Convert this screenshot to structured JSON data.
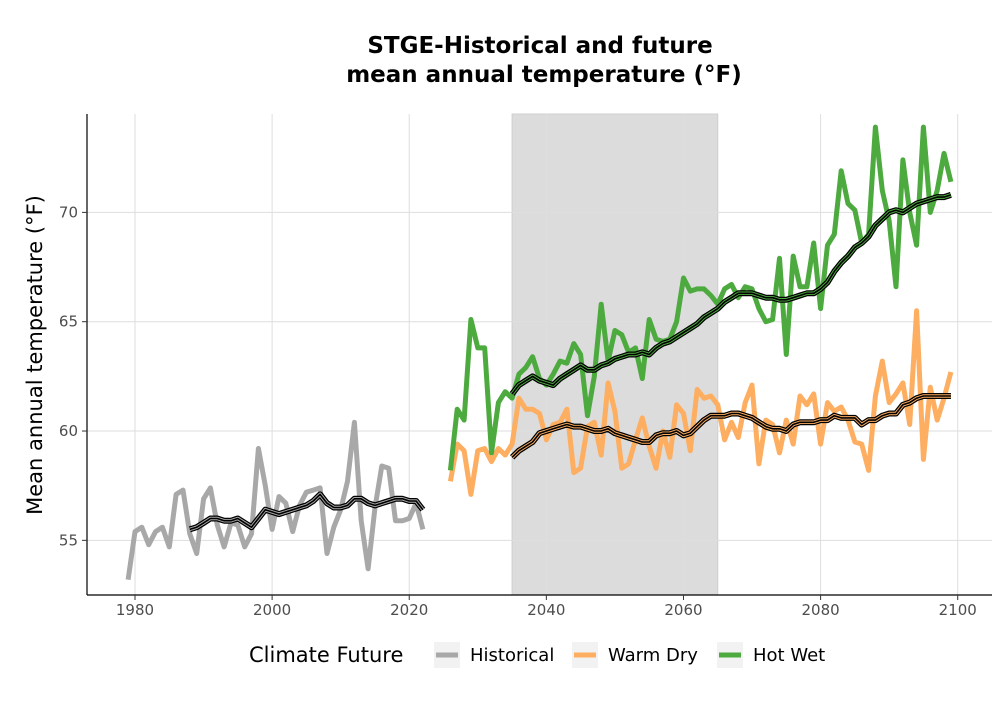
{
  "chart_data": {
    "type": "line",
    "title_lines": [
      "STGE-Historical and future",
      "mean annual temperature (°F)"
    ],
    "xlabel": "",
    "ylabel": "Mean annual temperature (°F)",
    "xlim": [
      1973,
      2105
    ],
    "ylim": [
      52.5,
      74.5
    ],
    "x_ticks": [
      1980,
      2000,
      2020,
      2040,
      2060,
      2080,
      2100
    ],
    "y_ticks": [
      55,
      60,
      65,
      70
    ],
    "grid": true,
    "legend": {
      "title": "Climate Future",
      "position": "bottom"
    },
    "shaded_period": [
      2035,
      2065
    ],
    "shade_color": "#dcdcdc",
    "series": [
      {
        "name": "Historical",
        "color": "#a8a8a8",
        "x": [
          1979,
          1980,
          1981,
          1982,
          1983,
          1984,
          1985,
          1986,
          1987,
          1988,
          1989,
          1990,
          1991,
          1992,
          1993,
          1994,
          1995,
          1996,
          1997,
          1998,
          1999,
          2000,
          2001,
          2002,
          2003,
          2004,
          2005,
          2006,
          2007,
          2008,
          2009,
          2010,
          2011,
          2012,
          2013,
          2014,
          2015,
          2016,
          2017,
          2018,
          2019,
          2020,
          2021,
          2022
        ],
        "y": [
          53.2,
          55.4,
          55.6,
          54.8,
          55.4,
          55.6,
          54.7,
          57.1,
          57.3,
          55.3,
          54.4,
          56.9,
          57.4,
          55.7,
          54.7,
          55.8,
          55.7,
          54.7,
          55.3,
          59.2,
          57.5,
          55.5,
          57.0,
          56.7,
          55.4,
          56.6,
          57.2,
          57.3,
          57.4,
          54.4,
          55.6,
          56.4,
          57.7,
          60.4,
          55.9,
          53.7,
          56.5,
          58.4,
          58.3,
          55.9,
          55.9,
          56.0,
          56.7,
          55.5
        ],
        "smooth_x": [
          1988,
          1989,
          1990,
          1991,
          1992,
          1993,
          1994,
          1995,
          1996,
          1997,
          1998,
          1999,
          2000,
          2001,
          2002,
          2003,
          2004,
          2005,
          2006,
          2007,
          2008,
          2009,
          2010,
          2011,
          2012,
          2013,
          2014,
          2015,
          2016,
          2017,
          2018,
          2019,
          2020,
          2021,
          2022
        ],
        "smooth_y": [
          55.5,
          55.6,
          55.8,
          56.0,
          56.0,
          55.9,
          55.9,
          56.0,
          55.8,
          55.6,
          56.0,
          56.4,
          56.3,
          56.2,
          56.3,
          56.4,
          56.5,
          56.6,
          56.8,
          57.1,
          56.7,
          56.5,
          56.5,
          56.6,
          56.9,
          56.9,
          56.7,
          56.6,
          56.7,
          56.8,
          56.9,
          56.9,
          56.8,
          56.8,
          56.4
        ]
      },
      {
        "name": "Warm Dry",
        "color": "#fdae61",
        "x": [
          2026,
          2027,
          2028,
          2029,
          2030,
          2031,
          2032,
          2033,
          2034,
          2035,
          2036,
          2037,
          2038,
          2039,
          2040,
          2041,
          2042,
          2043,
          2044,
          2045,
          2046,
          2047,
          2048,
          2049,
          2050,
          2051,
          2052,
          2053,
          2054,
          2055,
          2056,
          2057,
          2058,
          2059,
          2060,
          2061,
          2062,
          2063,
          2064,
          2065,
          2066,
          2067,
          2068,
          2069,
          2070,
          2071,
          2072,
          2073,
          2074,
          2075,
          2076,
          2077,
          2078,
          2079,
          2080,
          2081,
          2082,
          2083,
          2084,
          2085,
          2086,
          2087,
          2088,
          2089,
          2090,
          2091,
          2092,
          2093,
          2094,
          2095,
          2096,
          2097,
          2098,
          2099
        ],
        "y": [
          57.7,
          59.4,
          59.1,
          57.1,
          59.1,
          59.2,
          58.6,
          59.2,
          58.9,
          59.4,
          61.5,
          61.0,
          61.0,
          60.8,
          59.6,
          60.3,
          60.4,
          61.0,
          58.1,
          58.3,
          60.2,
          60.4,
          58.9,
          62.2,
          60.9,
          58.3,
          58.5,
          59.6,
          60.6,
          59.3,
          58.3,
          60.0,
          58.8,
          61.2,
          60.8,
          59.1,
          61.9,
          61.5,
          61.6,
          61.2,
          59.6,
          60.4,
          59.7,
          61.3,
          62.1,
          58.5,
          60.5,
          60.3,
          59.0,
          60.5,
          59.4,
          61.6,
          61.2,
          61.7,
          59.4,
          61.3,
          60.9,
          61.1,
          60.5,
          59.5,
          59.4,
          58.2,
          61.6,
          63.2,
          61.3,
          61.7,
          62.2,
          60.3,
          65.5,
          58.7,
          62.0,
          60.5,
          61.5,
          62.7
        ],
        "smooth_x": [
          2035,
          2036,
          2037,
          2038,
          2039,
          2040,
          2041,
          2042,
          2043,
          2044,
          2045,
          2046,
          2047,
          2048,
          2049,
          2050,
          2051,
          2052,
          2053,
          2054,
          2055,
          2056,
          2057,
          2058,
          2059,
          2060,
          2061,
          2062,
          2063,
          2064,
          2065,
          2066,
          2067,
          2068,
          2069,
          2070,
          2071,
          2072,
          2073,
          2074,
          2075,
          2076,
          2077,
          2078,
          2079,
          2080,
          2081,
          2082,
          2083,
          2084,
          2085,
          2086,
          2087,
          2088,
          2089,
          2090,
          2091,
          2092,
          2093,
          2094,
          2095,
          2096,
          2097,
          2098,
          2099
        ],
        "smooth_y": [
          58.8,
          59.1,
          59.3,
          59.5,
          59.9,
          60.0,
          60.1,
          60.2,
          60.3,
          60.2,
          60.2,
          60.1,
          60.0,
          60.0,
          60.1,
          59.9,
          59.8,
          59.7,
          59.6,
          59.5,
          59.5,
          59.8,
          59.9,
          59.9,
          60.0,
          59.8,
          59.9,
          60.2,
          60.5,
          60.7,
          60.7,
          60.7,
          60.8,
          60.8,
          60.7,
          60.6,
          60.4,
          60.2,
          60.1,
          60.1,
          60.0,
          60.3,
          60.4,
          60.4,
          60.4,
          60.5,
          60.5,
          60.7,
          60.6,
          60.6,
          60.6,
          60.3,
          60.5,
          60.5,
          60.7,
          60.8,
          60.8,
          61.2,
          61.3,
          61.5,
          61.6,
          61.6,
          61.6,
          61.6,
          61.6
        ]
      },
      {
        "name": "Hot Wet",
        "color": "#4daa3f",
        "x": [
          2026,
          2027,
          2028,
          2029,
          2030,
          2031,
          2032,
          2033,
          2034,
          2035,
          2036,
          2037,
          2038,
          2039,
          2040,
          2041,
          2042,
          2043,
          2044,
          2045,
          2046,
          2047,
          2048,
          2049,
          2050,
          2051,
          2052,
          2053,
          2054,
          2055,
          2056,
          2057,
          2058,
          2059,
          2060,
          2061,
          2062,
          2063,
          2064,
          2065,
          2066,
          2067,
          2068,
          2069,
          2070,
          2071,
          2072,
          2073,
          2074,
          2075,
          2076,
          2077,
          2078,
          2079,
          2080,
          2081,
          2082,
          2083,
          2084,
          2085,
          2086,
          2087,
          2088,
          2089,
          2090,
          2091,
          2092,
          2093,
          2094,
          2095,
          2096,
          2097,
          2098,
          2099
        ],
        "y": [
          58.2,
          61.0,
          60.5,
          65.1,
          63.8,
          63.8,
          59.0,
          61.3,
          61.8,
          61.5,
          62.6,
          62.9,
          63.4,
          62.4,
          62.1,
          62.6,
          63.2,
          63.1,
          64.0,
          63.5,
          60.7,
          62.5,
          65.8,
          63.2,
          64.6,
          64.4,
          63.6,
          63.8,
          62.4,
          65.1,
          64.2,
          64.1,
          64.2,
          65.0,
          67.0,
          66.4,
          66.5,
          66.5,
          66.2,
          65.8,
          66.5,
          66.7,
          66.1,
          66.6,
          66.5,
          65.6,
          65.0,
          65.1,
          67.9,
          63.5,
          68.0,
          66.6,
          66.6,
          68.6,
          65.6,
          68.5,
          69.0,
          71.9,
          70.4,
          70.1,
          68.6,
          69.0,
          73.9,
          71.0,
          69.6,
          66.6,
          72.4,
          70.0,
          68.5,
          73.9,
          70.0,
          71.0,
          72.7,
          71.4
        ],
        "smooth_x": [
          2035,
          2036,
          2037,
          2038,
          2039,
          2040,
          2041,
          2042,
          2043,
          2044,
          2045,
          2046,
          2047,
          2048,
          2049,
          2050,
          2051,
          2052,
          2053,
          2054,
          2055,
          2056,
          2057,
          2058,
          2059,
          2060,
          2061,
          2062,
          2063,
          2064,
          2065,
          2066,
          2067,
          2068,
          2069,
          2070,
          2071,
          2072,
          2073,
          2074,
          2075,
          2076,
          2077,
          2078,
          2079,
          2080,
          2081,
          2082,
          2083,
          2084,
          2085,
          2086,
          2087,
          2088,
          2089,
          2090,
          2091,
          2092,
          2093,
          2094,
          2095,
          2096,
          2097,
          2098,
          2099
        ],
        "smooth_y": [
          61.7,
          62.1,
          62.3,
          62.5,
          62.3,
          62.2,
          62.1,
          62.4,
          62.6,
          62.8,
          63.0,
          62.8,
          62.8,
          63.0,
          63.1,
          63.3,
          63.4,
          63.5,
          63.5,
          63.6,
          63.5,
          63.8,
          64.0,
          64.1,
          64.3,
          64.5,
          64.7,
          64.9,
          65.2,
          65.4,
          65.6,
          65.9,
          66.1,
          66.3,
          66.3,
          66.3,
          66.2,
          66.1,
          66.1,
          66.0,
          66.0,
          66.1,
          66.2,
          66.3,
          66.3,
          66.5,
          66.8,
          67.3,
          67.7,
          68.0,
          68.4,
          68.6,
          68.9,
          69.4,
          69.7,
          70.0,
          70.1,
          70.0,
          70.2,
          70.4,
          70.5,
          70.6,
          70.7,
          70.7,
          70.8
        ]
      }
    ]
  }
}
